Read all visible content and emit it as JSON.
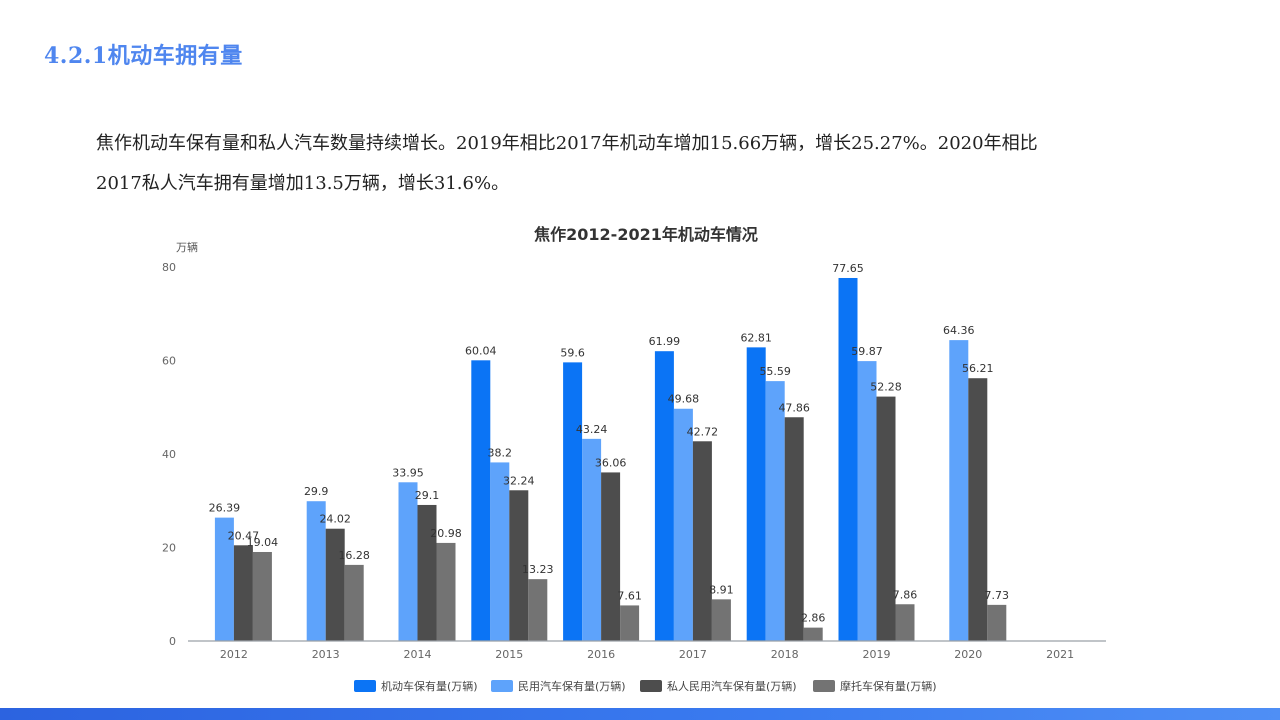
{
  "header": {
    "section_title": "4.2.1机动车拥有量"
  },
  "body": {
    "line1": "焦作机动车保有量和私人汽车数量持续增长。2019年相比2017年机动车增加15.66万辆，增长25.27%。2020年相比",
    "line2": "2017私人汽车拥有量增加13.5万辆，增长31.6%。"
  },
  "colors": {
    "accent": "#4f86ef",
    "series": [
      "#0b74f5",
      "#5ea3fb",
      "#4d4d4d",
      "#737373"
    ]
  },
  "chart_data": {
    "type": "bar",
    "title": "焦作2012-2021年机动车情况",
    "ylabel": "万辆",
    "xlabel": "",
    "ylim": [
      0,
      80
    ],
    "yticks": [
      0,
      20,
      40,
      60,
      80
    ],
    "categories": [
      "2012",
      "2013",
      "2014",
      "2015",
      "2016",
      "2017",
      "2018",
      "2019",
      "2020",
      "2021"
    ],
    "legend_position": "bottom",
    "series": [
      {
        "name": "机动车保有量(万辆)",
        "values": [
          null,
          null,
          null,
          60.04,
          59.6,
          61.99,
          62.81,
          77.65,
          null,
          null
        ],
        "labels": [
          null,
          null,
          null,
          "60.04",
          "59.6",
          "61.99",
          "62.81",
          "77.65",
          null,
          null
        ]
      },
      {
        "name": "民用汽车保有量(万辆)",
        "values": [
          26.39,
          29.9,
          33.95,
          38.2,
          43.24,
          49.68,
          55.59,
          59.87,
          64.36,
          null
        ],
        "labels": [
          "26.39",
          "29.9",
          "33.95",
          "38.2",
          "43.24",
          "49.68",
          "55.59",
          "59.87",
          "64.36",
          null
        ]
      },
      {
        "name": "私人民用汽车保有量(万辆)",
        "values": [
          20.47,
          24.02,
          29.1,
          32.24,
          36.06,
          42.72,
          47.86,
          52.28,
          56.21,
          null
        ],
        "labels": [
          "20.47",
          "24.02",
          "29.1",
          "32.24",
          "36.06",
          "42.72",
          "47.86",
          "52.28",
          "56.21",
          null
        ]
      },
      {
        "name": "摩托车保有量(万辆)",
        "values": [
          19.04,
          16.28,
          20.98,
          13.23,
          7.61,
          8.91,
          2.86,
          7.86,
          7.73,
          null
        ],
        "labels": [
          "19.04",
          "16.28",
          "20.98",
          "13.23",
          "7.61",
          "8.91",
          "2.86",
          "7.86",
          "7.73",
          null
        ]
      }
    ]
  }
}
